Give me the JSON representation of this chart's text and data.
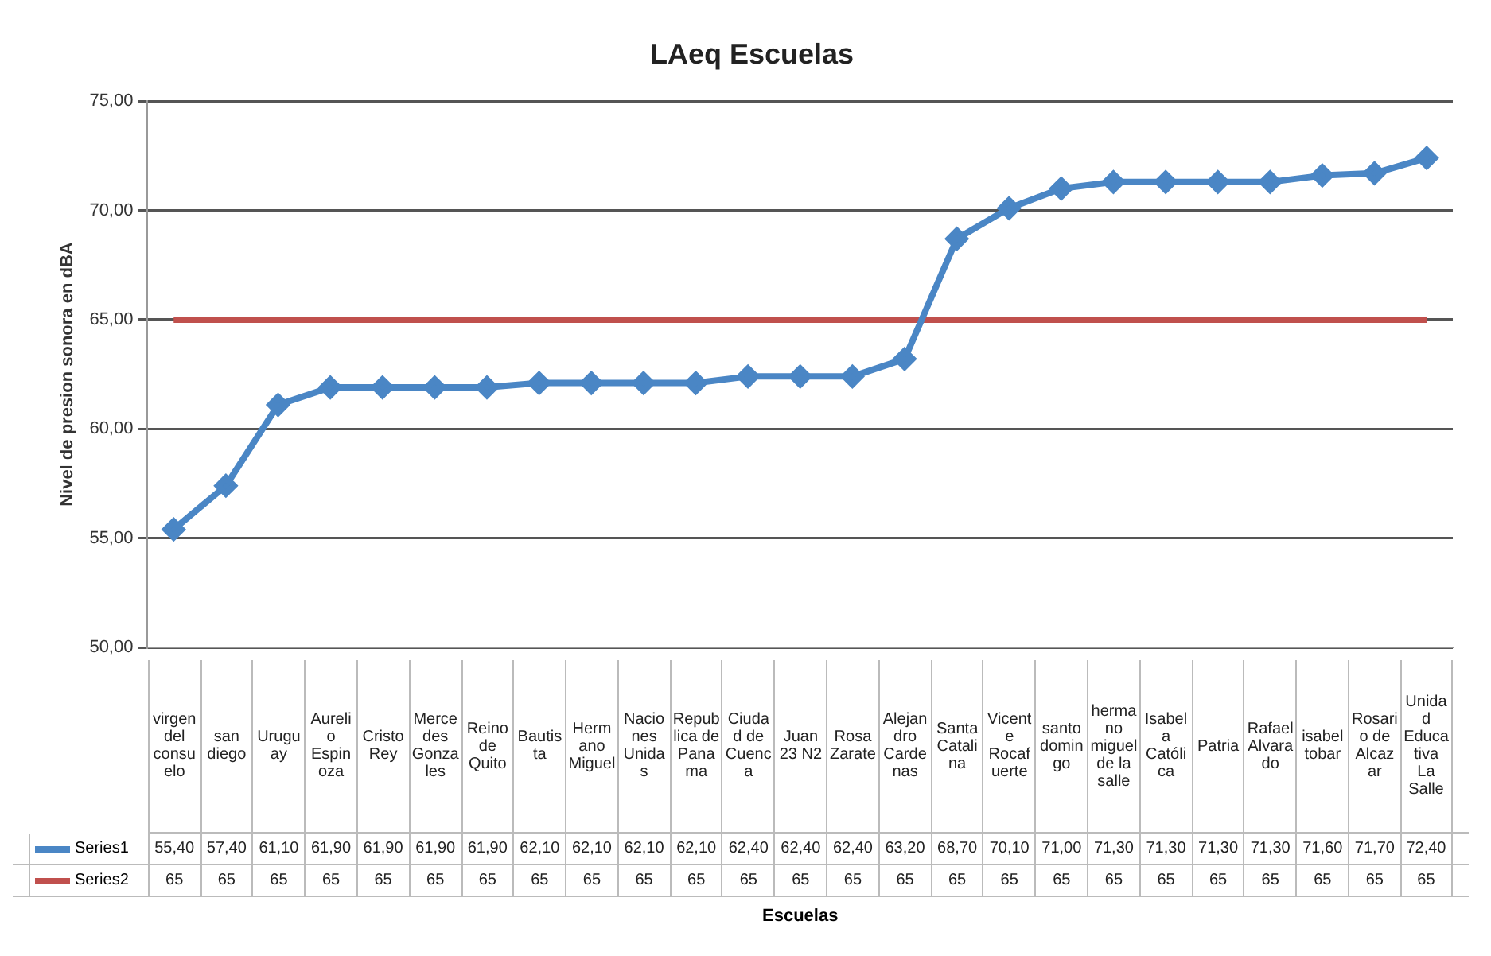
{
  "chart_data": {
    "type": "line",
    "title": "LAeq Escuelas",
    "annotations": [
      "Escuelas"
    ],
    "ylabel": "Nivel de presion sonora en dBA",
    "categories": [
      "virgen del consuelo",
      "san diego",
      "Uruguay",
      "Aurelio Espinoza",
      "Cristo Rey",
      "Mercedes Gonzales",
      "Reino de Quito",
      "Bautista",
      "Hermano Miguel",
      "Naciones Unidas",
      "Republica de Panama",
      "Ciudad de Cuenca",
      "Juan 23 N2",
      "Rosa Zarate",
      "Alejandro Cardenas",
      "Santa Catalina",
      "Vicente Rocafuerte",
      "santo domingo",
      "hermano miguel de la salle",
      "Isabela Católica",
      "Patria",
      "Rafael Alvarado",
      "isabel tobar",
      "Rosario de Alcazar",
      "Unidad Educativa La Salle"
    ],
    "series": [
      {
        "name": "Series1",
        "color": "#4a86c5",
        "marker": "diamond",
        "values": [
          55.4,
          57.4,
          61.1,
          61.9,
          61.9,
          61.9,
          61.9,
          62.1,
          62.1,
          62.1,
          62.1,
          62.4,
          62.4,
          62.4,
          63.2,
          68.7,
          70.1,
          71.0,
          71.3,
          71.3,
          71.3,
          71.3,
          71.6,
          71.7,
          72.4
        ],
        "value_labels": [
          "55,40",
          "57,40",
          "61,10",
          "61,90",
          "61,90",
          "61,90",
          "61,90",
          "62,10",
          "62,10",
          "62,10",
          "62,10",
          "62,40",
          "62,40",
          "62,40",
          "63,20",
          "68,70",
          "70,10",
          "71,00",
          "71,30",
          "71,30",
          "71,30",
          "71,30",
          "71,60",
          "71,70",
          "72,40"
        ]
      },
      {
        "name": "Series2",
        "color": "#c0504d",
        "marker": "none",
        "values": [
          65,
          65,
          65,
          65,
          65,
          65,
          65,
          65,
          65,
          65,
          65,
          65,
          65,
          65,
          65,
          65,
          65,
          65,
          65,
          65,
          65,
          65,
          65,
          65,
          65
        ],
        "value_labels": [
          "65",
          "65",
          "65",
          "65",
          "65",
          "65",
          "65",
          "65",
          "65",
          "65",
          "65",
          "65",
          "65",
          "65",
          "65",
          "65",
          "65",
          "65",
          "65",
          "65",
          "65",
          "65",
          "65",
          "65",
          "65"
        ]
      }
    ],
    "ylim": [
      50,
      75
    ],
    "yticks": [
      {
        "value": 50,
        "label": "50,00"
      },
      {
        "value": 55,
        "label": "55,00"
      },
      {
        "value": 60,
        "label": "60,00"
      },
      {
        "value": 65,
        "label": "65,00"
      },
      {
        "value": 70,
        "label": "70,00"
      },
      {
        "value": 75,
        "label": "75,00"
      }
    ],
    "grid": "y",
    "legend": "bottom",
    "data_labels": true
  }
}
